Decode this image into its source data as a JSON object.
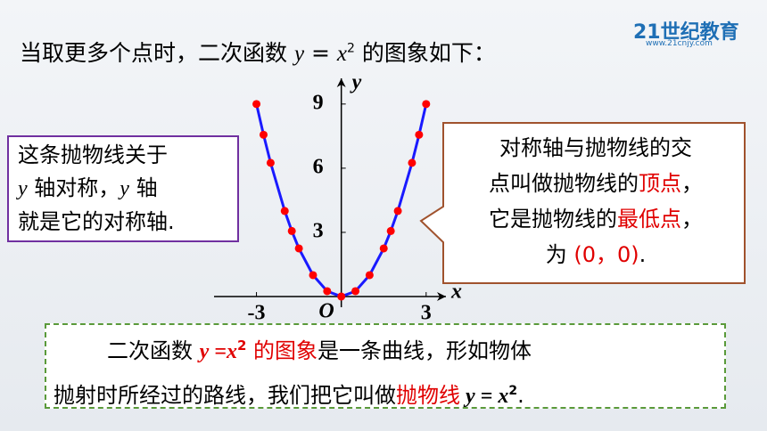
{
  "title": [
    {
      "text": "当取更多个点时，二次函数 "
    },
    {
      "text": "y",
      "style": "italic"
    },
    {
      "text": " = "
    },
    {
      "text": "x",
      "style": "italic"
    },
    {
      "text": "2",
      "style": "sup"
    },
    {
      "text": " 的图象如下："
    }
  ],
  "logo": {
    "name": "21世纪教育",
    "url": "www.21cnjy.com"
  },
  "left_note": [
    [
      {
        "text": "这条抛物线关于"
      }
    ],
    [
      {
        "text": "y",
        "style": "italic"
      },
      {
        "text": " 轴对称，"
      },
      {
        "text": "y",
        "style": "italic"
      },
      {
        "text": " 轴"
      }
    ],
    [
      {
        "text": "就是它的对称轴."
      }
    ]
  ],
  "right_note": [
    [
      {
        "text": "对称轴与抛物线的交"
      }
    ],
    [
      {
        "text": "点叫做抛物线的"
      },
      {
        "text": "顶点",
        "style": "red"
      },
      {
        "text": "，"
      }
    ],
    [
      {
        "text": "它是抛物线的"
      },
      {
        "text": "最低点",
        "style": "red"
      },
      {
        "text": "，"
      }
    ],
    [
      {
        "text": "为 "
      },
      {
        "text": "(0，0)",
        "style": "red"
      },
      {
        "text": "."
      }
    ]
  ],
  "bottom_note": [
    [
      {
        "text": "二次函数 "
      },
      {
        "text": "y =x",
        "style": "redbold"
      },
      {
        "text": "2",
        "style": "redsup"
      },
      {
        "text": " 的图象",
        "style": "red"
      },
      {
        "text": "是一条曲线，形如物体"
      }
    ],
    [
      {
        "text": "抛射时所经过的路线，我们把它叫做"
      },
      {
        "text": "抛物线",
        "style": "red"
      },
      {
        "text": " y = x",
        "style": "bold"
      },
      {
        "text": "2",
        "style": "boldsup"
      },
      {
        "text": "."
      }
    ]
  ],
  "chart_data": {
    "type": "line",
    "x": [
      -3,
      -2.75,
      -2.5,
      -2,
      -1.75,
      -1.5,
      -1,
      -0.5,
      0,
      0.5,
      1,
      1.5,
      1.75,
      2,
      2.5,
      2.75,
      3
    ],
    "values": [
      9,
      7.5625,
      6.25,
      4,
      3.0625,
      2.25,
      1,
      0.25,
      0,
      0.25,
      1,
      2.25,
      3.0625,
      4,
      6.25,
      7.5625,
      9
    ],
    "color": "#1a1aff",
    "marker_color": "#ff0000",
    "xlim": [
      -4.5,
      3.7
    ],
    "ylim": [
      -0.5,
      10.2
    ],
    "xticks": [
      -3,
      3
    ],
    "yticks": [
      3,
      6,
      9
    ],
    "x_label": "x",
    "y_label": "y",
    "origin_label": "O"
  }
}
